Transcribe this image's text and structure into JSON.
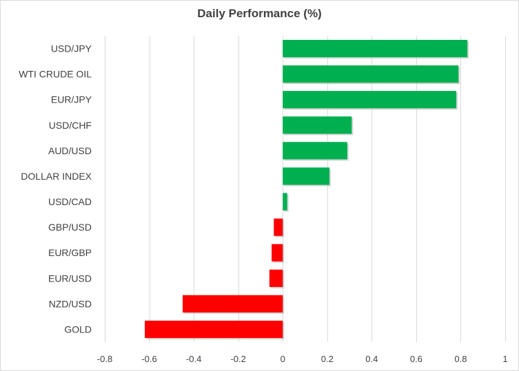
{
  "chart_data": {
    "type": "bar",
    "orientation": "horizontal",
    "title": "Daily Performance (%)",
    "xlabel": "",
    "ylabel": "",
    "categories": [
      "USD/JPY",
      "WTI CRUDE OIL",
      "EUR/JPY",
      "USD/CHF",
      "AUD/USD",
      "DOLLAR INDEX",
      "USD/CAD",
      "GBP/USD",
      "EUR/GBP",
      "EUR/USD",
      "NZD/USD",
      "GOLD"
    ],
    "values": [
      0.83,
      0.79,
      0.78,
      0.31,
      0.29,
      0.21,
      0.02,
      -0.04,
      -0.05,
      -0.06,
      -0.45,
      -0.62
    ],
    "xlim": [
      -0.8,
      1
    ],
    "xticks": [
      "-0.8",
      "-0.6",
      "-0.4",
      "-0.2",
      "0",
      "0.2",
      "0.4",
      "0.6",
      "0.8",
      "1"
    ],
    "xtick_values": [
      -0.8,
      -0.6,
      -0.4,
      -0.2,
      0,
      0.2,
      0.4,
      0.6,
      0.8,
      1
    ],
    "grid": "vertical",
    "legend": "none",
    "colors": {
      "positive": "#00b050",
      "negative": "#ff0000",
      "shadow": "#b0b0b0"
    }
  }
}
